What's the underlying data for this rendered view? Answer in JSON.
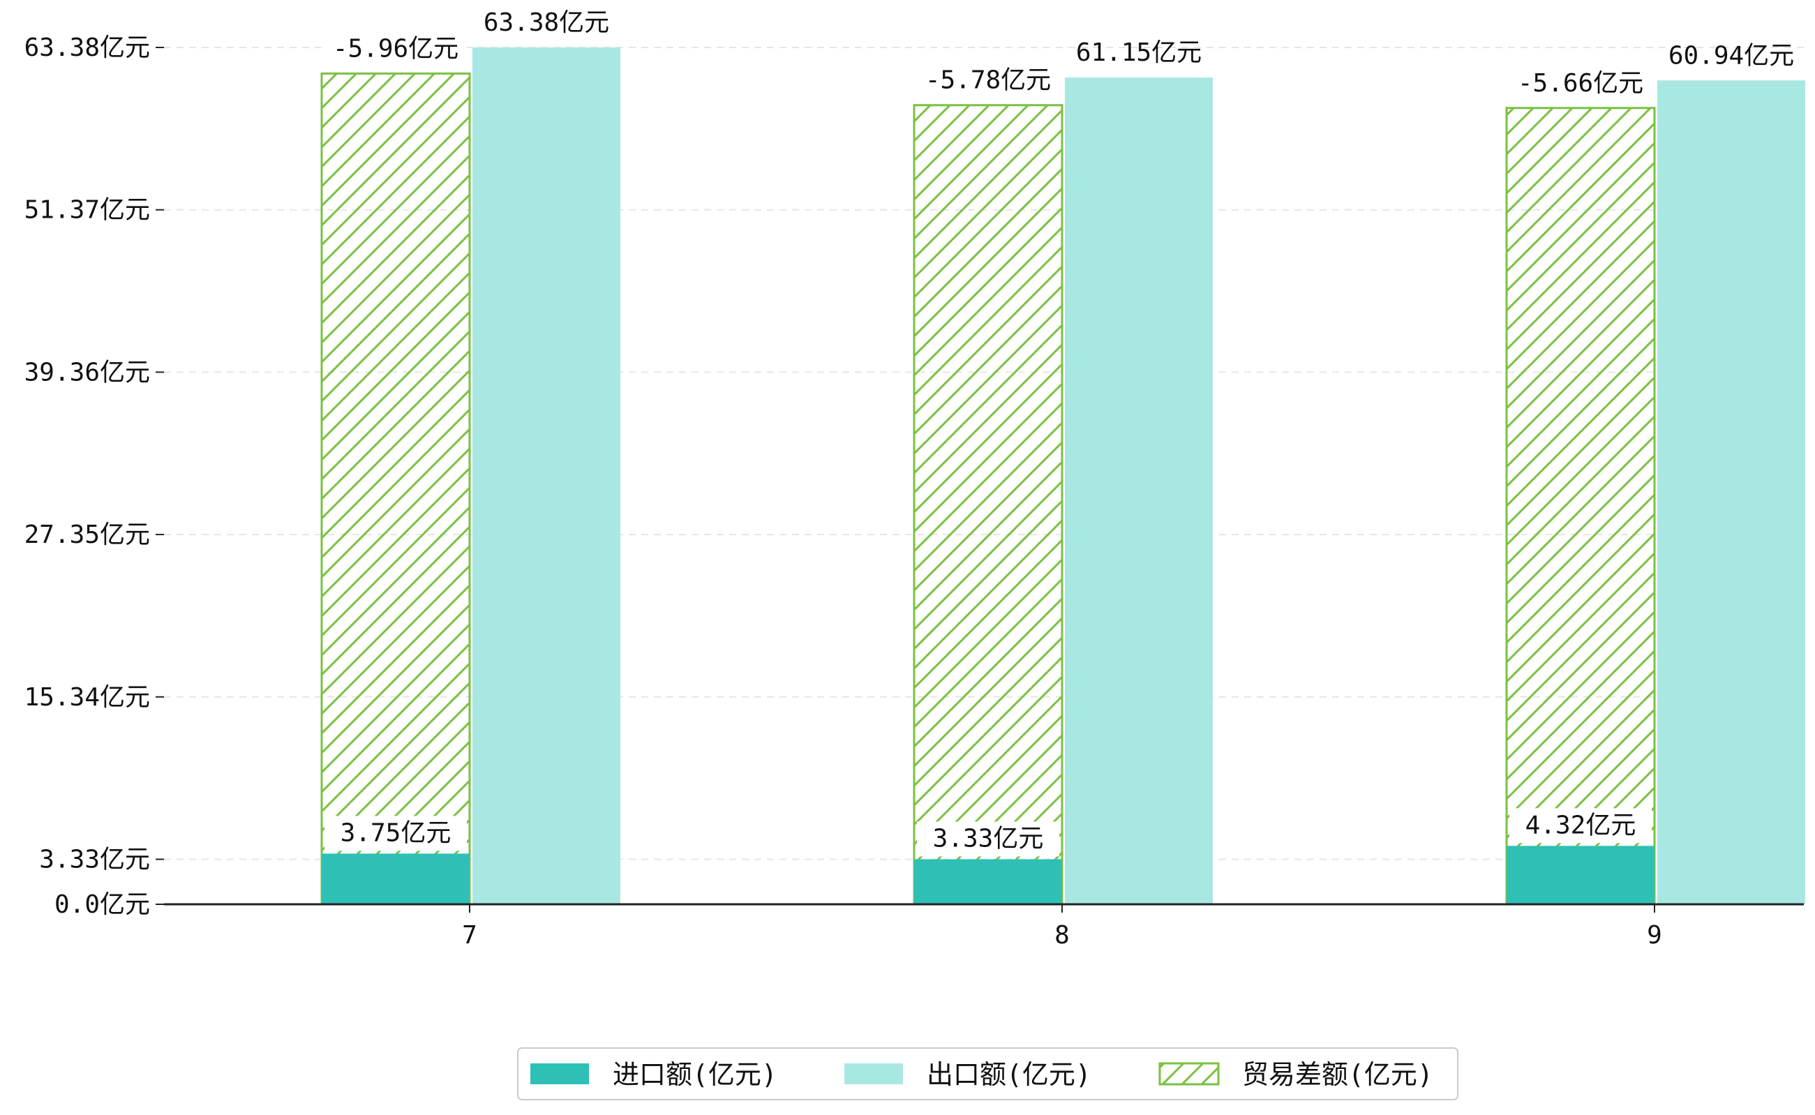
{
  "chart_data": {
    "type": "bar",
    "categories": [
      "7",
      "8",
      "9"
    ],
    "y_ticks": [
      "0.0亿元",
      "3.33亿元",
      "15.34亿元",
      "27.35亿元",
      "39.36亿元",
      "51.37亿元",
      "63.38亿元"
    ],
    "y_tick_values": [
      0.0,
      3.33,
      15.34,
      27.35,
      39.36,
      51.37,
      63.38
    ],
    "ylim": [
      0,
      63.38
    ],
    "grid": true,
    "legend_position": "bottom-center",
    "series": [
      {
        "name": "进口额(亿元)",
        "values": [
          3.75,
          3.33,
          4.32
        ],
        "labels": [
          "3.75亿元",
          "3.33亿元",
          "4.32亿元"
        ],
        "color": "#2EC0B5"
      },
      {
        "name": "出口额(亿元)",
        "values": [
          63.38,
          61.15,
          60.94
        ],
        "labels": [
          "63.38亿元",
          "61.15亿元",
          "60.94亿元"
        ],
        "color": "#A9E8E2"
      },
      {
        "name": "贸易差额(亿元)",
        "values": [
          -5.96,
          -5.78,
          -5.66
        ],
        "labels": [
          "-5.96亿元",
          "-5.78亿元",
          "-5.66亿元"
        ],
        "bar_top": [
          61.45,
          59.11,
          58.9
        ],
        "color": "#7AC142",
        "pattern": "hatch"
      }
    ]
  }
}
